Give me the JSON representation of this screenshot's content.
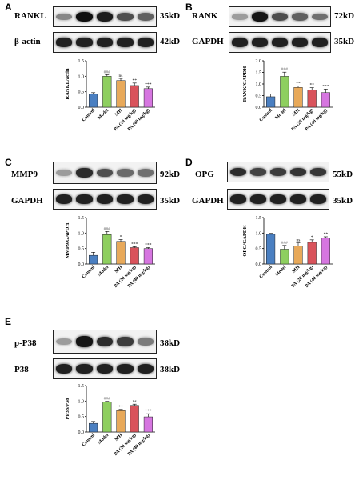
{
  "panels": [
    {
      "id": "A",
      "letter": "A",
      "blots": [
        {
          "protein": "RANKL",
          "kd": "35kD",
          "intensity": [
            0.45,
            0.98,
            0.92,
            0.7,
            0.62
          ]
        },
        {
          "protein": "β-actin",
          "kd": "42kD",
          "intensity": [
            0.9,
            0.9,
            0.9,
            0.9,
            0.9
          ]
        }
      ]
    },
    {
      "id": "B",
      "letter": "B",
      "blots": [
        {
          "protein": "RANK",
          "kd": "72kD",
          "intensity": [
            0.35,
            0.95,
            0.7,
            0.62,
            0.55
          ]
        },
        {
          "protein": "GAPDH",
          "kd": "35kD",
          "intensity": [
            0.9,
            0.9,
            0.9,
            0.9,
            0.9
          ]
        }
      ]
    },
    {
      "id": "C",
      "letter": "C",
      "blots": [
        {
          "protein": "MMP9",
          "kd": "92kD",
          "intensity": [
            0.35,
            0.85,
            0.7,
            0.58,
            0.55
          ]
        },
        {
          "protein": "GAPDH",
          "kd": "35kD",
          "intensity": [
            0.9,
            0.9,
            0.9,
            0.9,
            0.9
          ]
        }
      ]
    },
    {
      "id": "D",
      "letter": "D",
      "blots": [
        {
          "protein": "OPG",
          "kd": "55kD",
          "intensity": [
            0.85,
            0.75,
            0.78,
            0.82,
            0.8
          ]
        },
        {
          "protein": "GAPDH",
          "kd": "35kD",
          "intensity": [
            0.9,
            0.9,
            0.9,
            0.9,
            0.9
          ]
        }
      ]
    },
    {
      "id": "E",
      "letter": "E",
      "blots": [
        {
          "protein": "p-P38",
          "kd": "38kD",
          "intensity": [
            0.35,
            0.95,
            0.85,
            0.78,
            0.5
          ]
        },
        {
          "protein": "P38",
          "kd": "38kD",
          "intensity": [
            0.9,
            0.9,
            0.9,
            0.9,
            0.9
          ]
        }
      ]
    }
  ],
  "chart_data": [
    {
      "panel": "A",
      "type": "bar",
      "categories": [
        "Control",
        "Model",
        "MH",
        "PA (20 mg/kg)",
        "PA (40 mg/kg)"
      ],
      "values": [
        0.42,
        1.0,
        0.86,
        0.7,
        0.6
      ],
      "errors": [
        0.05,
        0.05,
        0.07,
        0.08,
        0.05
      ],
      "significance": [
        "",
        "###",
        "ns",
        "**",
        "***"
      ],
      "ylabel": "RANKL/actin",
      "ylim": [
        0,
        1.5
      ],
      "yticks": [
        "0.0",
        "0.5",
        "1.0",
        "1.5"
      ],
      "colors": [
        "#4a7fc1",
        "#8ecf5f",
        "#e8a95a",
        "#d9535b",
        "#d676e0"
      ]
    },
    {
      "panel": "B",
      "type": "bar",
      "categories": [
        "Control",
        "Model",
        "MH",
        "PA (20 mg/kg)",
        "PA (40 mg/kg)"
      ],
      "values": [
        0.45,
        1.33,
        0.85,
        0.75,
        0.63
      ],
      "errors": [
        0.12,
        0.18,
        0.07,
        0.09,
        0.15
      ],
      "significance": [
        "",
        "###",
        "**",
        "**",
        "***"
      ],
      "ylabel": "RANK/GAPDH",
      "ylim": [
        0,
        2.0
      ],
      "yticks": [
        "0.0",
        "0.5",
        "1.0",
        "1.5",
        "2.0"
      ],
      "colors": [
        "#4a7fc1",
        "#8ecf5f",
        "#e8a95a",
        "#d9535b",
        "#d676e0"
      ]
    },
    {
      "panel": "C",
      "type": "bar",
      "categories": [
        "Control",
        "Model",
        "MH",
        "PA (20 mg/kg)",
        "PA (40 mg/kg)"
      ],
      "values": [
        0.28,
        0.95,
        0.73,
        0.53,
        0.5
      ],
      "errors": [
        0.1,
        0.1,
        0.06,
        0.03,
        0.03
      ],
      "significance": [
        "",
        "###",
        "*",
        "***",
        "***"
      ],
      "ylabel": "MMP9/GAPDH",
      "ylim": [
        0,
        1.5
      ],
      "yticks": [
        "0.0",
        "0.5",
        "1.0",
        "1.5"
      ],
      "colors": [
        "#4a7fc1",
        "#8ecf5f",
        "#e8a95a",
        "#d9535b",
        "#d676e0"
      ]
    },
    {
      "panel": "D",
      "type": "bar",
      "categories": [
        "Control",
        "Model",
        "MH",
        "PA (20 mg/kg)",
        "PA (40 mg/kg)"
      ],
      "values": [
        0.96,
        0.48,
        0.58,
        0.7,
        0.84
      ],
      "errors": [
        0.03,
        0.12,
        0.1,
        0.08,
        0.04
      ],
      "significance": [
        "",
        "###",
        "ns",
        "*",
        "**"
      ],
      "ylabel": "OPG/GAPDH",
      "ylim": [
        0,
        1.5
      ],
      "yticks": [
        "0.0",
        "0.5",
        "1.0",
        "1.5"
      ],
      "colors": [
        "#4a7fc1",
        "#8ecf5f",
        "#e8a95a",
        "#d9535b",
        "#d676e0"
      ]
    },
    {
      "panel": "E",
      "type": "bar",
      "categories": [
        "Control",
        "Model",
        "MH",
        "PA (20 mg/kg)",
        "PA (40 mg/kg)"
      ],
      "values": [
        0.28,
        0.97,
        0.69,
        0.86,
        0.49
      ],
      "errors": [
        0.06,
        0.02,
        0.04,
        0.04,
        0.1
      ],
      "significance": [
        "",
        "###",
        "**",
        "ns",
        "***"
      ],
      "ylabel": "PP38/P38",
      "ylim": [
        0,
        1.5
      ],
      "yticks": [
        "0.0",
        "0.5",
        "1.0",
        "1.5"
      ],
      "colors": [
        "#4a7fc1",
        "#8ecf5f",
        "#e8a95a",
        "#d9535b",
        "#d676e0"
      ]
    }
  ]
}
